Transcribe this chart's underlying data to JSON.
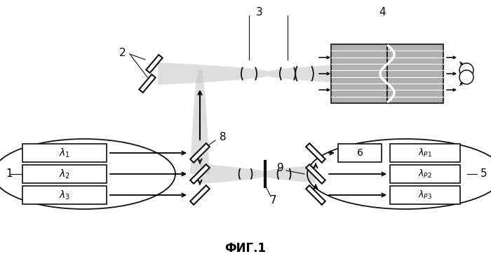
{
  "title": "ФИГ.1",
  "background_color": "#ffffff",
  "beam_color": "#c8c8c8",
  "dark": "#111111",
  "fiber_fill": "#b0b0b0",
  "fiber_line": "#888888"
}
